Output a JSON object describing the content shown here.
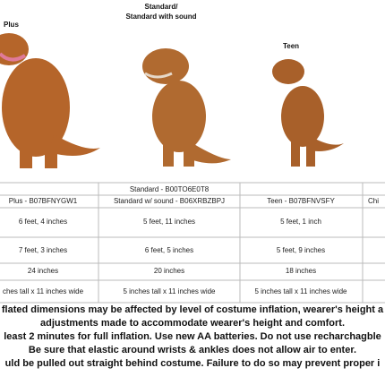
{
  "labels": {
    "plus": "Plus",
    "standard": [
      "Standard/",
      "Standard with sound"
    ],
    "teen": "Teen"
  },
  "table": {
    "top_row": "Standard - B00TO6E0T8",
    "models": [
      "Plus - B07BFNYGW1",
      "Standard w/ sound - B06XRBZBPJ",
      "Teen - B07BFNVSFY",
      "Chi"
    ],
    "rows": [
      [
        "6 feet, 4 inches",
        "5 feet, 11 inches",
        "5 feet, 1 inch"
      ],
      [
        "7 feet, 3 inches",
        "6 feet, 5 inches",
        "5 feet, 9 inches"
      ],
      [
        "24 inches",
        "20 inches",
        "18 inches"
      ],
      [
        "ches tall x 11 inches wide",
        "5 inches tall x 11 inches wide",
        "5 inches tall x 11 inches wide"
      ]
    ]
  },
  "notes": [
    "flated dimensions may be affected by level of costume inflation, wearer's height a",
    "adjustments made to accommodate wearer's height and comfort.",
    "least 2 minutes for full inflation. Use new AA batteries. Do not use recharchagble",
    "Be sure that elastic around wrists & ankles does not allow air to enter.",
    "uld be pulled out straight behind costume. Failure to do so may prevent proper i"
  ]
}
